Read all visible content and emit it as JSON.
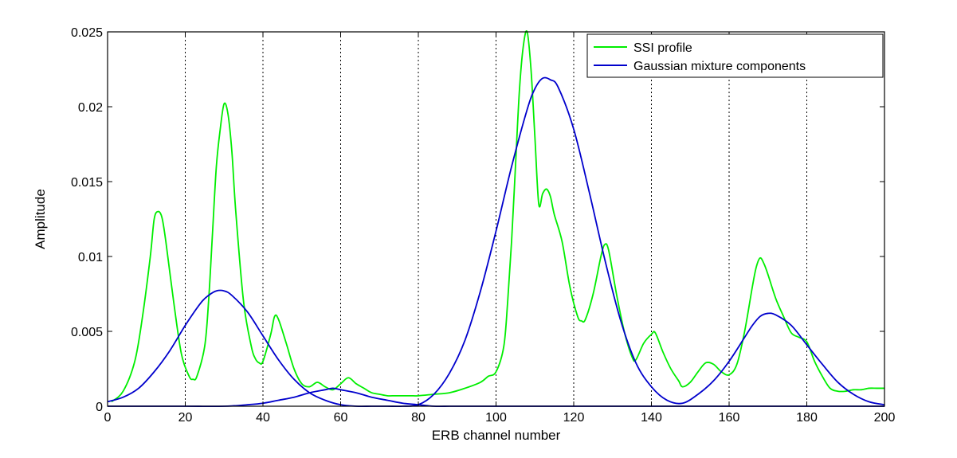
{
  "chart_data": {
    "type": "line",
    "xlabel": "ERB channel number",
    "ylabel": "Amplitude",
    "xlim": [
      0,
      200
    ],
    "ylim": [
      0,
      0.025
    ],
    "x_ticks": [
      0,
      20,
      40,
      60,
      80,
      100,
      120,
      140,
      160,
      180,
      200
    ],
    "x_tick_labels": [
      "0",
      "20",
      "40",
      "60",
      "80",
      "100",
      "120",
      "140",
      "160",
      "180",
      "200"
    ],
    "y_ticks": [
      0,
      0.005,
      0.01,
      0.015,
      0.02,
      0.025
    ],
    "y_tick_labels": [
      "0",
      "0.005",
      "0.01",
      "0.015",
      "0.02",
      "0.025"
    ],
    "grid": "vertical dotted at x ticks",
    "legend": {
      "position": "top-right",
      "entries": [
        {
          "label": "SSI profile",
          "color": "#00ee00"
        },
        {
          "label": "Gaussian mixture components",
          "color": "#0000cc"
        }
      ]
    },
    "series": [
      {
        "name": "SSI profile",
        "color": "#00ee00",
        "x": [
          1,
          4,
          7,
          9,
          11,
          12,
          13,
          14,
          15,
          17,
          19,
          21,
          22,
          23,
          25,
          26,
          27,
          28,
          29,
          30,
          31,
          32,
          33,
          35,
          37,
          38,
          39,
          40,
          42,
          43,
          44,
          46,
          48,
          50,
          52,
          54,
          56,
          58,
          60,
          62,
          64,
          66,
          68,
          70,
          72,
          74,
          76,
          78,
          80,
          84,
          88,
          92,
          96,
          98,
          100,
          102,
          103,
          104,
          105,
          106,
          107,
          108,
          109,
          110,
          111,
          112,
          113,
          114,
          115,
          117,
          119,
          121,
          122,
          123,
          125,
          127,
          128,
          129,
          131,
          133,
          135,
          136,
          138,
          140,
          141,
          143,
          145,
          147,
          148,
          150,
          152,
          154,
          156,
          158,
          160,
          162,
          164,
          166,
          167,
          168,
          169,
          170,
          172,
          174,
          176,
          178,
          180,
          182,
          184,
          186,
          188,
          190,
          192,
          194,
          196,
          198,
          200
        ],
        "values": [
          0.0003,
          0.001,
          0.003,
          0.006,
          0.01,
          0.0125,
          0.013,
          0.0126,
          0.011,
          0.007,
          0.0035,
          0.002,
          0.0018,
          0.002,
          0.004,
          0.007,
          0.0115,
          0.016,
          0.0185,
          0.0202,
          0.0195,
          0.017,
          0.013,
          0.007,
          0.004,
          0.0032,
          0.0029,
          0.003,
          0.0048,
          0.006,
          0.0058,
          0.0042,
          0.0025,
          0.0015,
          0.0013,
          0.0016,
          0.0013,
          0.0011,
          0.0015,
          0.0019,
          0.0015,
          0.0012,
          0.0009,
          0.0008,
          0.0007,
          0.0007,
          0.0007,
          0.0007,
          0.0007,
          0.0008,
          0.0009,
          0.0012,
          0.0016,
          0.002,
          0.0023,
          0.004,
          0.007,
          0.011,
          0.016,
          0.021,
          0.024,
          0.025,
          0.0225,
          0.018,
          0.0135,
          0.0142,
          0.0145,
          0.014,
          0.0128,
          0.011,
          0.008,
          0.006,
          0.0057,
          0.0058,
          0.0075,
          0.01,
          0.0108,
          0.0104,
          0.0075,
          0.005,
          0.0033,
          0.0031,
          0.0042,
          0.0048,
          0.0049,
          0.0036,
          0.0025,
          0.0017,
          0.0013,
          0.0016,
          0.0023,
          0.0029,
          0.0028,
          0.0023,
          0.0021,
          0.0028,
          0.005,
          0.008,
          0.0093,
          0.0099,
          0.0095,
          0.0088,
          0.0072,
          0.006,
          0.0049,
          0.0046,
          0.0043,
          0.003,
          0.002,
          0.0012,
          0.001,
          0.001,
          0.0011,
          0.0011,
          0.0012,
          0.0012,
          0.0012
        ]
      },
      {
        "name": "Gaussian mixture components",
        "color": "#0000cc",
        "x": [
          0,
          4,
          8,
          12,
          16,
          20,
          24,
          26,
          28,
          30,
          32,
          36,
          40,
          44,
          48,
          52,
          56,
          60,
          64,
          68,
          72,
          76,
          80,
          84,
          88,
          92,
          96,
          100,
          104,
          108,
          110,
          112,
          114,
          116,
          120,
          124,
          128,
          132,
          136,
          140,
          144,
          148,
          152,
          156,
          160,
          164,
          166,
          168,
          170,
          172,
          176,
          180,
          184,
          188,
          192,
          196,
          200
        ],
        "values": [
          0.0003,
          0.0006,
          0.0012,
          0.0023,
          0.0037,
          0.0054,
          0.0069,
          0.0074,
          0.0077,
          0.0077,
          0.0074,
          0.0063,
          0.0047,
          0.0031,
          0.0018,
          0.0009,
          0.0004,
          0.0001,
          0.0,
          0.0,
          0.0,
          0.0,
          0.0001,
          0.0008,
          0.0022,
          0.0044,
          0.0077,
          0.0117,
          0.016,
          0.0198,
          0.0212,
          0.0219,
          0.0218,
          0.0213,
          0.0185,
          0.0143,
          0.0098,
          0.0058,
          0.0029,
          0.0013,
          0.0004,
          0.0002,
          0.0008,
          0.0017,
          0.003,
          0.0046,
          0.0054,
          0.006,
          0.0062,
          0.0061,
          0.0054,
          0.0041,
          0.0028,
          0.0016,
          0.0008,
          0.0003,
          0.0001
        ]
      },
      {
        "name": "Gaussian mixture components",
        "color": "#0000cc",
        "x": [
          0,
          10,
          20,
          30,
          36,
          40,
          44,
          48,
          52,
          56,
          58,
          60,
          64,
          68,
          72,
          76,
          80,
          84,
          88,
          92,
          100,
          110,
          120,
          140,
          160,
          180,
          200
        ],
        "values": [
          0.0,
          0.0,
          0.0,
          0.0,
          0.0001,
          0.0002,
          0.0004,
          0.0006,
          0.0009,
          0.0011,
          0.0012,
          0.0011,
          0.0009,
          0.0006,
          0.0004,
          0.0002,
          0.0001,
          0.0,
          0.0,
          0.0,
          0.0,
          0.0,
          0.0,
          0.0,
          0.0,
          0.0,
          0.0
        ]
      }
    ]
  }
}
